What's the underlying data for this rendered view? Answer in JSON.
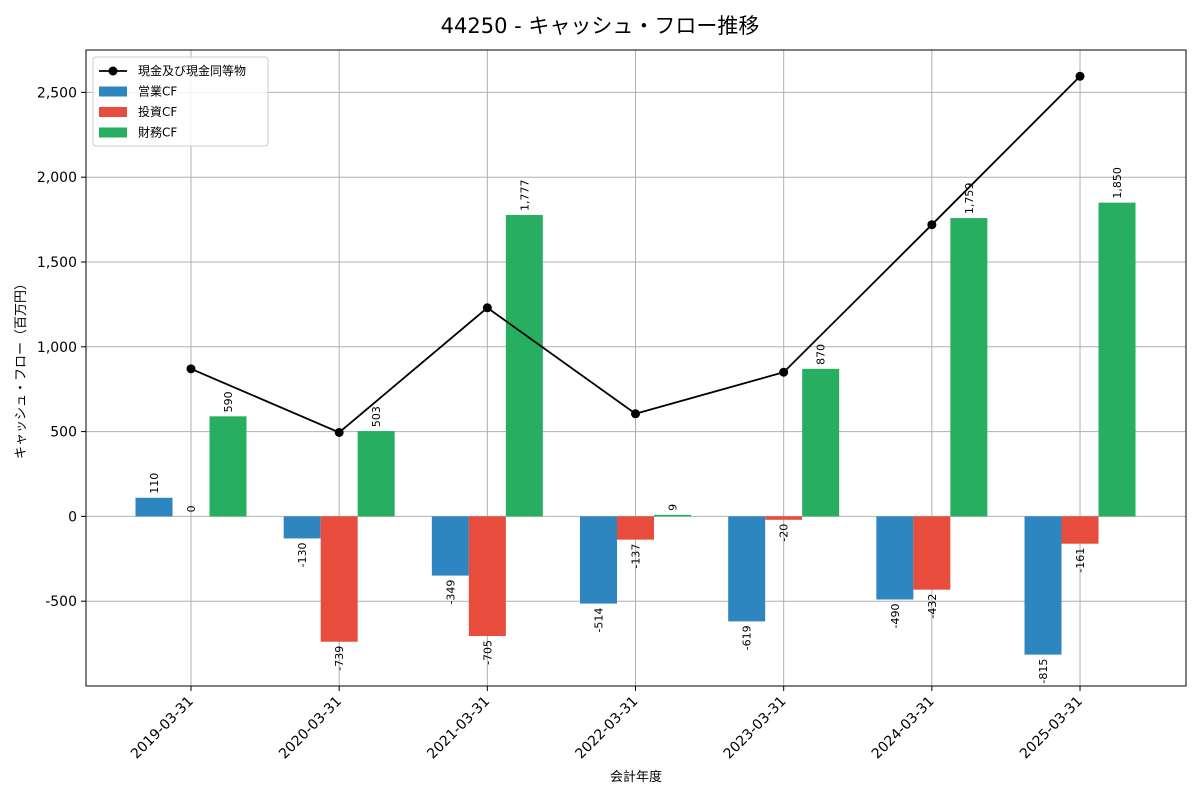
{
  "chart_data": {
    "type": "bar",
    "title": "44250 - キャッシュ・フロー推移",
    "xlabel": "会計年度",
    "ylabel": "キャッシュ・フロー（百万円）",
    "categories": [
      "2019-03-31",
      "2020-03-31",
      "2021-03-31",
      "2022-03-31",
      "2023-03-31",
      "2024-03-31",
      "2025-03-31"
    ],
    "ylim": [
      -1000,
      2750
    ],
    "yticks": [
      -500,
      0,
      500,
      1000,
      1500,
      2000,
      2500
    ],
    "ytick_labels": [
      "-500",
      "0",
      "500",
      "1,000",
      "1,500",
      "2,000",
      "2,500"
    ],
    "grid": true,
    "legend_position": "top-left",
    "series": [
      {
        "name": "営業CF",
        "kind": "bar",
        "color": "#2e86c1",
        "values": [
          110,
          -130,
          -349,
          -514,
          -619,
          -490,
          -815
        ],
        "labels": [
          "110",
          "-130",
          "-349",
          "-514",
          "-619",
          "-490",
          "-815"
        ]
      },
      {
        "name": "投資CF",
        "kind": "bar",
        "color": "#e74c3c",
        "values": [
          0,
          -739,
          -705,
          -137,
          -20,
          -432,
          -161
        ],
        "labels": [
          "0",
          "-739",
          "-705",
          "-137",
          "-20",
          "-432",
          "-161"
        ]
      },
      {
        "name": "財務CF",
        "kind": "bar",
        "color": "#27ae60",
        "values": [
          590,
          503,
          1777,
          9,
          870,
          1759,
          1850
        ],
        "labels": [
          "590",
          "503",
          "1,777",
          "9",
          "870",
          "1,759",
          "1,850"
        ]
      },
      {
        "name": "現金及び現金同等物",
        "kind": "line",
        "color": "#000000",
        "values": [
          870,
          495,
          1230,
          605,
          850,
          1720,
          2595
        ]
      }
    ]
  }
}
